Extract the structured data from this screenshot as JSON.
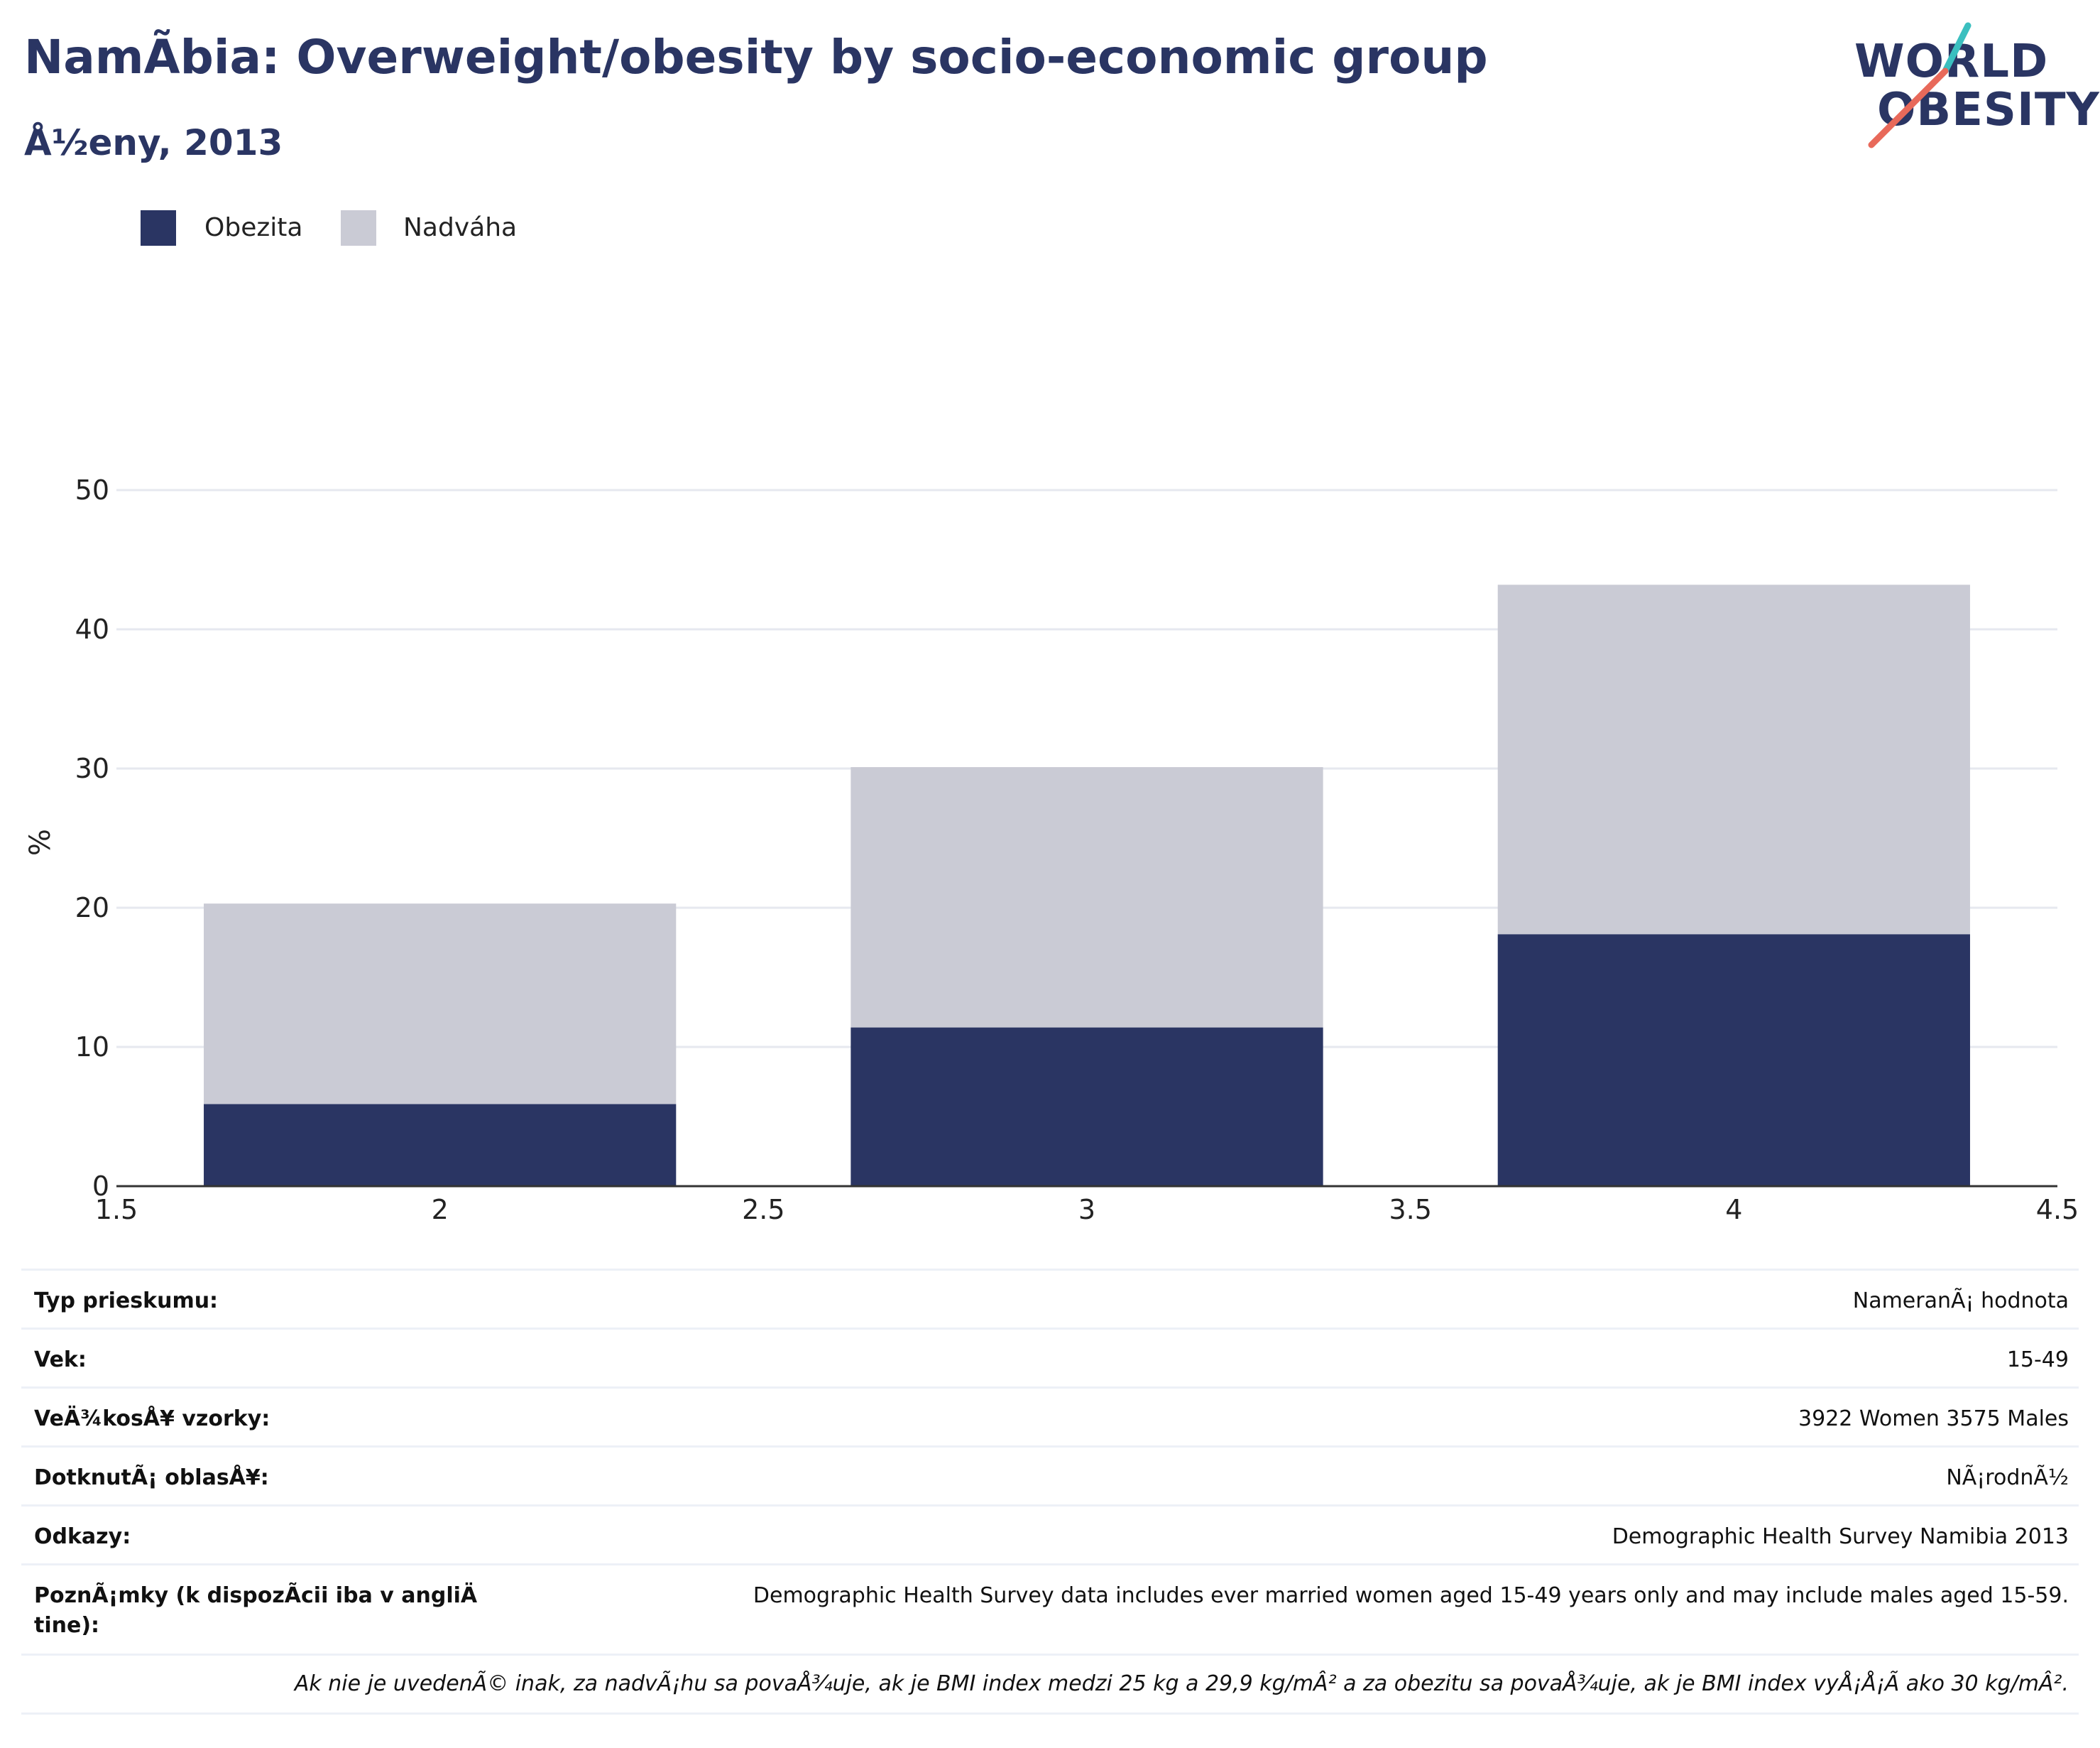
{
  "header": {
    "title": "NamÃbia: Overweight/obesity by socio-economic group",
    "subtitle": "Å½eny, 2013"
  },
  "logo": {
    "line1": "WORLD",
    "line2": "OBESITY",
    "accent_teal": "#3bbfbf",
    "accent_coral": "#e8695a"
  },
  "colors": {
    "obesity": "#2a3563",
    "overweight": "#cacbd5",
    "grid": "#e6e8ef",
    "axis": "#333333"
  },
  "legend": {
    "items": [
      {
        "label": "Obezita",
        "color": "#2a3563"
      },
      {
        "label": "Nadváha",
        "color": "#cacbd5"
      }
    ]
  },
  "chart_data": {
    "type": "bar",
    "stacked": true,
    "x": [
      2,
      3,
      4
    ],
    "x_ticks": [
      "1.5",
      "2",
      "2.5",
      "3",
      "3.5",
      "4",
      "4.5"
    ],
    "y_ticks": [
      "0",
      "10",
      "20",
      "30",
      "40",
      "50"
    ],
    "xlim": [
      1.5,
      4.5
    ],
    "ylim": [
      0,
      50
    ],
    "ylabel": "%",
    "grid": true,
    "legend_position": "top-left",
    "series": [
      {
        "name": "Obezita",
        "values": [
          5.9,
          11.4,
          18.1
        ]
      },
      {
        "name": "Nadváha",
        "values": [
          14.4,
          18.7,
          25.1
        ]
      }
    ]
  },
  "info": {
    "rows": [
      {
        "key": "Typ prieskumu:",
        "value": "NameranÃ¡ hodnota"
      },
      {
        "key": "Vek:",
        "value": "15-49"
      },
      {
        "key": "VeÄ¾kosÅ¥ vzorky:",
        "value": "3922 Women 3575 Males"
      },
      {
        "key": "DotknutÃ¡ oblasÅ¥:",
        "value": "NÃ¡rodnÃ½"
      },
      {
        "key": "Odkazy:",
        "value": "Demographic Health Survey Namibia 2013"
      },
      {
        "key": "PoznÃ¡mky (k dispozÃcii iba v angliÄ tine):",
        "value": "Demographic Health Survey data includes ever married women aged 15-49 years only and may include males aged 15-59."
      }
    ],
    "footnote": "Ak nie je uvedenÃ© inak, za nadvÃ¡hu sa povaÅ¾uje, ak je BMI index medzi 25 kg a 29,9 kg/mÂ² a za obezitu sa povaÅ¾uje, ak je BMI index vyÅ¡Å¡Ã ako 30 kg/mÂ²."
  }
}
